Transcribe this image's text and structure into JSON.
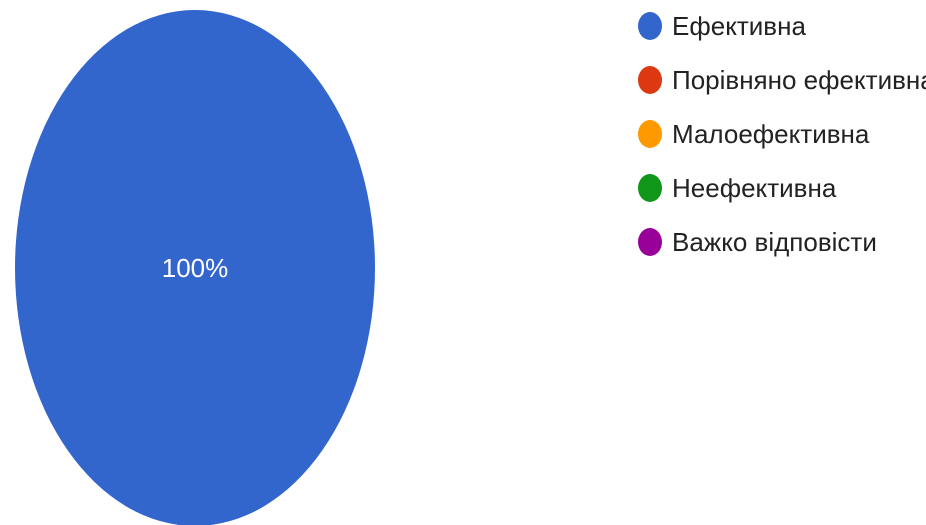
{
  "chart_data": {
    "type": "pie",
    "legend_position": "right",
    "slices": [
      {
        "label": "Ефективна",
        "value": 100,
        "display": "100%",
        "color": "#3366cc"
      },
      {
        "label": "Порівняно ефективна",
        "value": 0,
        "display": "",
        "color": "#dc3912"
      },
      {
        "label": "Малоефективна",
        "value": 0,
        "display": "",
        "color": "#ff9900"
      },
      {
        "label": "Неефективна",
        "value": 0,
        "display": "",
        "color": "#109618"
      },
      {
        "label": "Важко відповісти",
        "value": 0,
        "display": "",
        "color": "#990099"
      }
    ]
  }
}
